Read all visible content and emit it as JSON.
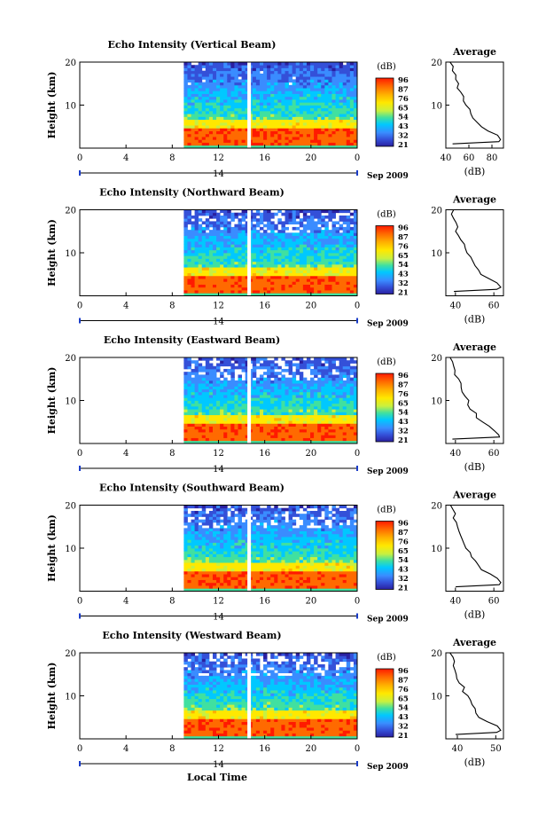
{
  "figure": {
    "xlabel": "Local Time",
    "colorbar_unit": "(dB)",
    "colorbar_ticks": [
      "96",
      "87",
      "76",
      "65",
      "54",
      "43",
      "32",
      "21"
    ],
    "colorbar_colors": [
      "#ff1a00",
      "#ff6a00",
      "#ffb000",
      "#ffe800",
      "#c8f040",
      "#40e0a0",
      "#00c8ff",
      "#3a8cff",
      "#3450d8",
      "#2a20a0"
    ],
    "time_ticks": [
      "0",
      "4",
      "8",
      "12",
      "16",
      "20",
      "0"
    ],
    "date_label": "14",
    "date_suffix": "Sep 2009",
    "height_label": "Height (km)",
    "height_ticks": [
      "20",
      "10"
    ],
    "avg_title": "Average",
    "avg_xlabel": "(dB)"
  },
  "panels": [
    {
      "title": "Echo Intensity (Vertical Beam)",
      "avg_ticks": [
        "40",
        "60",
        "80"
      ],
      "avg_xlim": [
        40,
        90
      ]
    },
    {
      "title": "Echo Intensity (Northward Beam)",
      "avg_ticks": [
        "40",
        "60"
      ],
      "avg_xlim": [
        35,
        65
      ]
    },
    {
      "title": "Echo Intensity (Eastward Beam)",
      "avg_ticks": [
        "40",
        "60"
      ],
      "avg_xlim": [
        35,
        65
      ]
    },
    {
      "title": "Echo Intensity (Southward Beam)",
      "avg_ticks": [
        "40",
        "60"
      ],
      "avg_xlim": [
        35,
        65
      ]
    },
    {
      "title": "Echo Intensity (Westward Beam)",
      "avg_ticks": [
        "40",
        "50"
      ],
      "avg_xlim": [
        37,
        52
      ]
    }
  ],
  "chart_data": {
    "type": "heatmap",
    "x_range_hours": [
      0,
      24
    ],
    "data_start_hour": 9,
    "gap_hour": 14.5,
    "y_range_km": [
      0,
      20
    ],
    "average_profile": {
      "height_km": [
        1,
        1.5,
        2,
        3,
        4,
        5,
        6,
        7,
        8,
        9,
        10,
        11,
        12,
        13,
        14,
        15,
        16,
        17,
        18,
        19,
        20
      ],
      "rel_intensity": [
        0.1,
        0.95,
        1.0,
        0.9,
        0.78,
        0.62,
        0.55,
        0.5,
        0.44,
        0.4,
        0.36,
        0.3,
        0.27,
        0.24,
        0.2,
        0.17,
        0.14,
        0.12,
        0.1,
        0.08,
        0.06
      ]
    }
  }
}
